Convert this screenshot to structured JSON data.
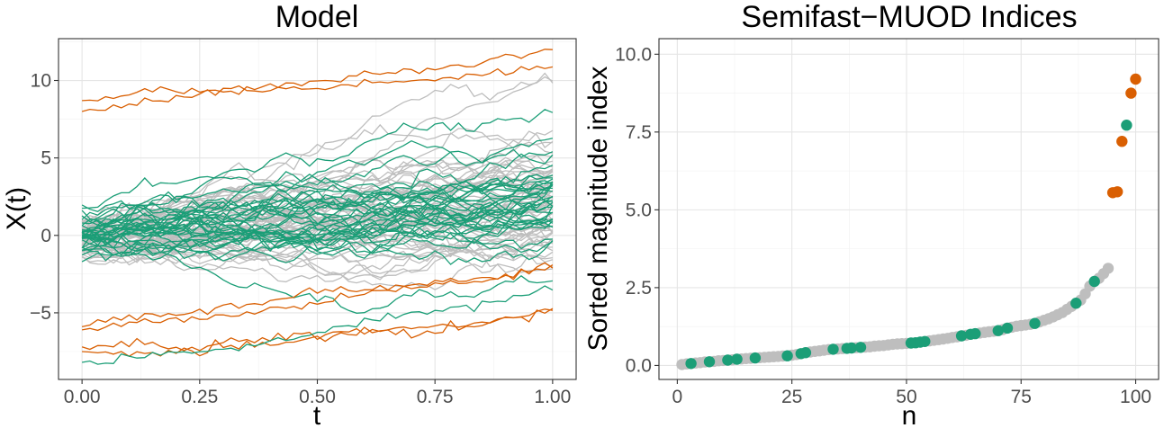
{
  "colors": {
    "normal": "#bebebe",
    "green": "#1b9e77",
    "orange": "#d95f02",
    "grid_major": "#e5e5e5",
    "grid_minor": "#f1f1f1"
  },
  "chart_data": [
    {
      "type": "line",
      "title": "Model",
      "xlabel": "t",
      "ylabel": "X(t)",
      "xlim": [
        -0.05,
        1.05
      ],
      "ylim": [
        -9.3,
        12.7
      ],
      "xticks": [
        0,
        0.25,
        0.5,
        0.75,
        1
      ],
      "xtick_labels": [
        "0.00",
        "0.25",
        "0.50",
        "0.75",
        "1.00"
      ],
      "yticks": [
        -5,
        0,
        5,
        10
      ],
      "ytick_labels": [
        "−5",
        "0",
        "5",
        "10"
      ],
      "grid": true,
      "note_bundle": "61 grey curves and 36 green curves between roughly -2 and 6, each starting near 0 at t=0 and drifting up to about 2-6 at t=1",
      "series": [
        {
          "group": "orange",
          "x": [
            0,
            0.1,
            0.2,
            0.3,
            0.4,
            0.5,
            0.6,
            0.7,
            0.8,
            0.9,
            1.0
          ],
          "y": [
            8.7,
            9.2,
            9.5,
            9.3,
            9.6,
            9.9,
            10.4,
            10.6,
            11.0,
            11.5,
            12.0
          ]
        },
        {
          "group": "orange",
          "x": [
            0,
            0.1,
            0.2,
            0.3,
            0.4,
            0.5,
            0.6,
            0.7,
            0.8,
            0.9,
            1.0
          ],
          "y": [
            8.0,
            8.5,
            8.9,
            9.3,
            9.4,
            9.4,
            9.9,
            10.1,
            10.2,
            10.5,
            10.8
          ]
        },
        {
          "group": "orange",
          "x": [
            0,
            0.1,
            0.2,
            0.3,
            0.4,
            0.5,
            0.6,
            0.7,
            0.8,
            0.9,
            1.0
          ],
          "y": [
            -5.9,
            -5.3,
            -5.0,
            -4.6,
            -4.3,
            -3.6,
            -3.4,
            -3.3,
            -3.0,
            -2.6,
            -1.9
          ]
        },
        {
          "group": "orange",
          "x": [
            0,
            0.1,
            0.2,
            0.3,
            0.4,
            0.5,
            0.6,
            0.7,
            0.8,
            0.9,
            1.0
          ],
          "y": [
            -6.1,
            -5.6,
            -5.5,
            -5.3,
            -4.7,
            -4.3,
            -3.7,
            -3.3,
            -2.9,
            -2.6,
            -2.0
          ]
        },
        {
          "group": "orange",
          "x": [
            0,
            0.1,
            0.2,
            0.3,
            0.4,
            0.5,
            0.6,
            0.7,
            0.8,
            0.9,
            1.0
          ],
          "y": [
            -7.2,
            -6.9,
            -7.3,
            -6.8,
            -6.6,
            -6.4,
            -6.1,
            -6.0,
            -5.8,
            -5.4,
            -4.8
          ]
        },
        {
          "group": "orange",
          "x": [
            0,
            0.1,
            0.2,
            0.3,
            0.4,
            0.5,
            0.6,
            0.7,
            0.8,
            0.9,
            1.0
          ],
          "y": [
            -7.5,
            -7.7,
            -7.5,
            -7.2,
            -7.1,
            -6.6,
            -6.2,
            -6.4,
            -5.9,
            -5.5,
            -4.9
          ]
        },
        {
          "group": "green",
          "x": [
            0,
            0.1,
            0.2,
            0.3,
            0.4,
            0.5,
            0.6,
            0.7,
            0.8,
            0.9,
            1.0
          ],
          "y": [
            -8.2,
            -7.9,
            -7.6,
            -7.4,
            -7.0,
            -6.2,
            -5.6,
            -5.0,
            -4.6,
            -4.1,
            -3.4
          ]
        }
      ]
    },
    {
      "type": "scatter",
      "title": "Semifast−MUOD Indices",
      "xlabel": "n",
      "ylabel": "Sorted magnitude index",
      "xlim": [
        -4.0,
        105.0
      ],
      "ylim": [
        -0.45,
        10.5
      ],
      "xticks": [
        0,
        25,
        50,
        75,
        100
      ],
      "xtick_labels": [
        "0",
        "25",
        "50",
        "75",
        "100"
      ],
      "yticks": [
        0,
        2.5,
        5,
        7.5,
        10
      ],
      "ytick_labels": [
        "0.0",
        "2.5",
        "5.0",
        "7.5",
        "10.0"
      ],
      "grid": true,
      "points": [
        {
          "n": 1,
          "v": 0.03,
          "g": "grey"
        },
        {
          "n": 2,
          "v": 0.05,
          "g": "grey"
        },
        {
          "n": 3,
          "v": 0.06,
          "g": "green"
        },
        {
          "n": 4,
          "v": 0.08,
          "g": "grey"
        },
        {
          "n": 5,
          "v": 0.09,
          "g": "grey"
        },
        {
          "n": 6,
          "v": 0.11,
          "g": "grey"
        },
        {
          "n": 7,
          "v": 0.12,
          "g": "green"
        },
        {
          "n": 8,
          "v": 0.13,
          "g": "grey"
        },
        {
          "n": 9,
          "v": 0.15,
          "g": "grey"
        },
        {
          "n": 10,
          "v": 0.16,
          "g": "grey"
        },
        {
          "n": 11,
          "v": 0.17,
          "g": "green"
        },
        {
          "n": 12,
          "v": 0.18,
          "g": "grey"
        },
        {
          "n": 13,
          "v": 0.2,
          "g": "green"
        },
        {
          "n": 14,
          "v": 0.21,
          "g": "grey"
        },
        {
          "n": 15,
          "v": 0.22,
          "g": "grey"
        },
        {
          "n": 16,
          "v": 0.23,
          "g": "grey"
        },
        {
          "n": 17,
          "v": 0.24,
          "g": "green"
        },
        {
          "n": 18,
          "v": 0.25,
          "g": "grey"
        },
        {
          "n": 19,
          "v": 0.26,
          "g": "grey"
        },
        {
          "n": 20,
          "v": 0.27,
          "g": "grey"
        },
        {
          "n": 21,
          "v": 0.28,
          "g": "grey"
        },
        {
          "n": 22,
          "v": 0.29,
          "g": "grey"
        },
        {
          "n": 23,
          "v": 0.3,
          "g": "grey"
        },
        {
          "n": 24,
          "v": 0.31,
          "g": "green"
        },
        {
          "n": 25,
          "v": 0.33,
          "g": "grey"
        },
        {
          "n": 26,
          "v": 0.35,
          "g": "grey"
        },
        {
          "n": 27,
          "v": 0.38,
          "g": "green"
        },
        {
          "n": 28,
          "v": 0.41,
          "g": "green"
        },
        {
          "n": 29,
          "v": 0.43,
          "g": "grey"
        },
        {
          "n": 30,
          "v": 0.45,
          "g": "grey"
        },
        {
          "n": 31,
          "v": 0.47,
          "g": "grey"
        },
        {
          "n": 32,
          "v": 0.49,
          "g": "grey"
        },
        {
          "n": 33,
          "v": 0.51,
          "g": "grey"
        },
        {
          "n": 34,
          "v": 0.52,
          "g": "green"
        },
        {
          "n": 35,
          "v": 0.53,
          "g": "grey"
        },
        {
          "n": 36,
          "v": 0.54,
          "g": "grey"
        },
        {
          "n": 37,
          "v": 0.55,
          "g": "green"
        },
        {
          "n": 38,
          "v": 0.56,
          "g": "green"
        },
        {
          "n": 39,
          "v": 0.57,
          "g": "grey"
        },
        {
          "n": 40,
          "v": 0.58,
          "g": "green"
        },
        {
          "n": 41,
          "v": 0.59,
          "g": "grey"
        },
        {
          "n": 42,
          "v": 0.6,
          "g": "grey"
        },
        {
          "n": 43,
          "v": 0.62,
          "g": "grey"
        },
        {
          "n": 44,
          "v": 0.63,
          "g": "grey"
        },
        {
          "n": 45,
          "v": 0.64,
          "g": "grey"
        },
        {
          "n": 46,
          "v": 0.66,
          "g": "grey"
        },
        {
          "n": 47,
          "v": 0.68,
          "g": "grey"
        },
        {
          "n": 48,
          "v": 0.69,
          "g": "grey"
        },
        {
          "n": 49,
          "v": 0.7,
          "g": "grey"
        },
        {
          "n": 50,
          "v": 0.71,
          "g": "grey"
        },
        {
          "n": 51,
          "v": 0.72,
          "g": "green"
        },
        {
          "n": 52,
          "v": 0.73,
          "g": "green"
        },
        {
          "n": 53,
          "v": 0.75,
          "g": "green"
        },
        {
          "n": 54,
          "v": 0.77,
          "g": "green"
        },
        {
          "n": 55,
          "v": 0.79,
          "g": "grey"
        },
        {
          "n": 56,
          "v": 0.81,
          "g": "grey"
        },
        {
          "n": 57,
          "v": 0.83,
          "g": "grey"
        },
        {
          "n": 58,
          "v": 0.85,
          "g": "grey"
        },
        {
          "n": 59,
          "v": 0.87,
          "g": "grey"
        },
        {
          "n": 60,
          "v": 0.9,
          "g": "grey"
        },
        {
          "n": 61,
          "v": 0.92,
          "g": "grey"
        },
        {
          "n": 62,
          "v": 0.95,
          "g": "green"
        },
        {
          "n": 63,
          "v": 0.97,
          "g": "grey"
        },
        {
          "n": 64,
          "v": 1.0,
          "g": "green"
        },
        {
          "n": 65,
          "v": 1.02,
          "g": "green"
        },
        {
          "n": 66,
          "v": 1.04,
          "g": "grey"
        },
        {
          "n": 67,
          "v": 1.06,
          "g": "grey"
        },
        {
          "n": 68,
          "v": 1.08,
          "g": "grey"
        },
        {
          "n": 69,
          "v": 1.1,
          "g": "grey"
        },
        {
          "n": 70,
          "v": 1.12,
          "g": "green"
        },
        {
          "n": 71,
          "v": 1.15,
          "g": "grey"
        },
        {
          "n": 72,
          "v": 1.2,
          "g": "green"
        },
        {
          "n": 73,
          "v": 1.23,
          "g": "grey"
        },
        {
          "n": 74,
          "v": 1.26,
          "g": "grey"
        },
        {
          "n": 75,
          "v": 1.28,
          "g": "grey"
        },
        {
          "n": 76,
          "v": 1.3,
          "g": "grey"
        },
        {
          "n": 77,
          "v": 1.32,
          "g": "grey"
        },
        {
          "n": 78,
          "v": 1.35,
          "g": "green"
        },
        {
          "n": 79,
          "v": 1.4,
          "g": "grey"
        },
        {
          "n": 80,
          "v": 1.45,
          "g": "grey"
        },
        {
          "n": 81,
          "v": 1.5,
          "g": "grey"
        },
        {
          "n": 82,
          "v": 1.56,
          "g": "grey"
        },
        {
          "n": 83,
          "v": 1.63,
          "g": "grey"
        },
        {
          "n": 84,
          "v": 1.7,
          "g": "grey"
        },
        {
          "n": 85,
          "v": 1.8,
          "g": "grey"
        },
        {
          "n": 86,
          "v": 1.9,
          "g": "grey"
        },
        {
          "n": 87,
          "v": 2.0,
          "g": "green"
        },
        {
          "n": 88,
          "v": 2.1,
          "g": "grey"
        },
        {
          "n": 89,
          "v": 2.3,
          "g": "grey"
        },
        {
          "n": 90,
          "v": 2.55,
          "g": "grey"
        },
        {
          "n": 91,
          "v": 2.7,
          "g": "green"
        },
        {
          "n": 92,
          "v": 2.8,
          "g": "grey"
        },
        {
          "n": 93,
          "v": 2.95,
          "g": "grey"
        },
        {
          "n": 94,
          "v": 3.12,
          "g": "grey"
        },
        {
          "n": 95,
          "v": 5.55,
          "g": "orange"
        },
        {
          "n": 96,
          "v": 5.58,
          "g": "orange"
        },
        {
          "n": 97,
          "v": 7.2,
          "g": "orange"
        },
        {
          "n": 98,
          "v": 7.72,
          "g": "green"
        },
        {
          "n": 99,
          "v": 8.75,
          "g": "orange"
        },
        {
          "n": 100,
          "v": 9.2,
          "g": "orange"
        }
      ]
    }
  ]
}
